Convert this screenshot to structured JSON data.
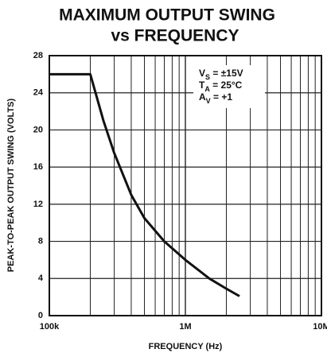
{
  "chart_data": {
    "type": "line",
    "title": [
      "MAXIMUM OUTPUT SWING",
      "vs FREQUENCY"
    ],
    "x_label": "FREQUENCY (Hz)",
    "y_label": "PEAK-TO-PEAK OUTPUT SWING (VOLTS)",
    "annotations": [
      {
        "symbol": "V",
        "subscript": "S",
        "text": " = ±15V"
      },
      {
        "symbol": "T",
        "subscript": "A",
        "text": " = 25°C"
      },
      {
        "symbol": "A",
        "subscript": "V",
        "text": " = +1"
      }
    ],
    "x": [
      100000,
      200000,
      250000,
      300000,
      400000,
      500000,
      700000,
      1000000,
      1500000,
      2000000,
      2500000
    ],
    "values": [
      26,
      26,
      21,
      17.5,
      13,
      10.5,
      8,
      6,
      4,
      2.9,
      2.1
    ],
    "color": "#111111",
    "xscale": "log",
    "xlim": [
      100000,
      10000000
    ],
    "xticks": [
      {
        "value": 100000,
        "label": "100k"
      },
      {
        "value": 1000000,
        "label": "1M"
      },
      {
        "value": 10000000,
        "label": "10M"
      }
    ],
    "ylim": [
      0,
      28
    ],
    "yticks": [
      0,
      4,
      8,
      12,
      16,
      20,
      24,
      28
    ],
    "grid": true
  }
}
